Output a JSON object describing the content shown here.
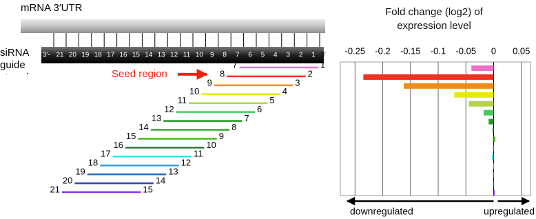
{
  "diagram": {
    "mrna_label": "mRNA 3′UTR",
    "sirna_label": "siRNA guide strand",
    "left_end": "3′-",
    "right_end": "-5′",
    "positions": [
      21,
      20,
      19,
      18,
      17,
      16,
      15,
      14,
      13,
      12,
      11,
      10,
      9,
      8,
      7,
      6,
      5,
      4,
      3,
      2,
      1
    ],
    "seed_label": "Seed region",
    "rows": [
      {
        "start": 7,
        "end": 1
      },
      {
        "start": 8,
        "end": 2
      },
      {
        "start": 9,
        "end": 3
      },
      {
        "start": 10,
        "end": 4
      },
      {
        "start": 11,
        "end": 5
      },
      {
        "start": 12,
        "end": 6
      },
      {
        "start": 13,
        "end": 7
      },
      {
        "start": 14,
        "end": 8
      },
      {
        "start": 15,
        "end": 9
      },
      {
        "start": 16,
        "end": 10
      },
      {
        "start": 17,
        "end": 11
      },
      {
        "start": 18,
        "end": 12
      },
      {
        "start": 19,
        "end": 13
      },
      {
        "start": 20,
        "end": 14
      },
      {
        "start": 21,
        "end": 15
      }
    ]
  },
  "chart_data": {
    "type": "hbar",
    "title": "Fold change (log2) of expression level",
    "categories": [
      null,
      null,
      null,
      null,
      null,
      null,
      null,
      null,
      null,
      null,
      null,
      null,
      null,
      null,
      null
    ],
    "values": [
      -0.04,
      -0.235,
      -0.162,
      -0.071,
      -0.045,
      -0.018,
      -0.009,
      -0.002,
      0.003,
      -0.001,
      -0.003,
      -0.001,
      -0.001,
      -0.001,
      0
    ],
    "colors": [
      "#f06ec8",
      "#ee3322",
      "#f08c1a",
      "#e6e61a",
      "#b4d44a",
      "#44cc55",
      "#229922",
      "#33aa33",
      "#44bb22",
      "#2a7a3a",
      "#33ddee",
      "#3399dd",
      "#2266cc",
      "#3344aa",
      "#8833ee"
    ],
    "xlim": [
      -0.2765,
      0.0665
    ],
    "xticks": [
      -0.25,
      -0.2,
      -0.15,
      -0.1,
      -0.05,
      0,
      0.05
    ],
    "grid": true,
    "left_annotation": "downregulated",
    "right_annotation": "upregulated"
  }
}
